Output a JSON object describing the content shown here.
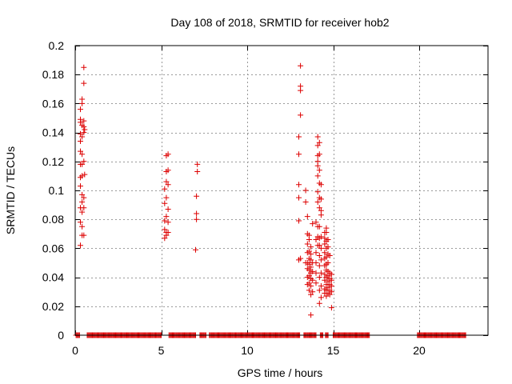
{
  "chart_data": {
    "type": "scatter",
    "title": "Day 108 of 2018, SRMTID for receiver hob2",
    "xlabel": "GPS time / hours",
    "ylabel": "SRMTID / TECUs",
    "xlim": [
      0,
      24
    ],
    "ylim": [
      0,
      0.2
    ],
    "x_ticks": [
      0,
      5,
      10,
      15,
      20
    ],
    "x_tick_labels": [
      "0",
      "5",
      "10",
      "15",
      "20"
    ],
    "y_ticks": [
      0,
      0.02,
      0.04,
      0.06,
      0.08,
      0.1,
      0.12,
      0.14,
      0.16,
      0.18,
      0.2
    ],
    "y_tick_labels": [
      "0",
      "0.02",
      "0.04",
      "0.06",
      "0.08",
      "0.1",
      "0.12",
      "0.14",
      "0.16",
      "0.18",
      "0.2"
    ],
    "grid": true,
    "marker": "+",
    "color": "#dd0000",
    "zero_value_runs": [
      {
        "start": 0.05,
        "end": 0.25
      },
      {
        "start": 0.7,
        "end": 5.0
      },
      {
        "start": 5.45,
        "end": 7.0
      },
      {
        "start": 7.25,
        "end": 7.6
      },
      {
        "start": 7.8,
        "end": 13.05
      },
      {
        "start": 13.3,
        "end": 14.0
      },
      {
        "start": 14.25,
        "end": 14.4
      },
      {
        "start": 14.55,
        "end": 14.7
      },
      {
        "start": 15.0,
        "end": 17.1
      },
      {
        "start": 19.9,
        "end": 22.7
      }
    ],
    "points": [
      [
        0.3,
        0.062
      ],
      [
        0.3,
        0.078
      ],
      [
        0.3,
        0.088
      ],
      [
        0.3,
        0.103
      ],
      [
        0.3,
        0.109
      ],
      [
        0.3,
        0.118
      ],
      [
        0.3,
        0.127
      ],
      [
        0.3,
        0.134
      ],
      [
        0.3,
        0.139
      ],
      [
        0.3,
        0.147
      ],
      [
        0.3,
        0.149
      ],
      [
        0.3,
        0.156
      ],
      [
        0.4,
        0.069
      ],
      [
        0.4,
        0.075
      ],
      [
        0.4,
        0.085
      ],
      [
        0.4,
        0.092
      ],
      [
        0.4,
        0.097
      ],
      [
        0.4,
        0.11
      ],
      [
        0.4,
        0.118
      ],
      [
        0.4,
        0.125
      ],
      [
        0.4,
        0.137
      ],
      [
        0.4,
        0.145
      ],
      [
        0.4,
        0.16
      ],
      [
        0.4,
        0.163
      ],
      [
        0.5,
        0.069
      ],
      [
        0.5,
        0.088
      ],
      [
        0.5,
        0.095
      ],
      [
        0.5,
        0.12
      ],
      [
        0.5,
        0.14
      ],
      [
        0.5,
        0.144
      ],
      [
        0.5,
        0.148
      ],
      [
        0.5,
        0.174
      ],
      [
        0.5,
        0.185
      ],
      [
        0.55,
        0.142
      ],
      [
        0.55,
        0.111
      ],
      [
        5.2,
        0.067
      ],
      [
        5.2,
        0.073
      ],
      [
        5.2,
        0.079
      ],
      [
        5.2,
        0.091
      ],
      [
        5.2,
        0.101
      ],
      [
        5.3,
        0.069
      ],
      [
        5.3,
        0.071
      ],
      [
        5.3,
        0.082
      ],
      [
        5.3,
        0.095
      ],
      [
        5.3,
        0.106
      ],
      [
        5.3,
        0.113
      ],
      [
        5.3,
        0.124
      ],
      [
        5.4,
        0.071
      ],
      [
        5.4,
        0.078
      ],
      [
        5.4,
        0.087
      ],
      [
        5.4,
        0.104
      ],
      [
        5.4,
        0.114
      ],
      [
        5.4,
        0.125
      ],
      [
        7.0,
        0.059
      ],
      [
        7.05,
        0.08
      ],
      [
        7.05,
        0.084
      ],
      [
        7.05,
        0.096
      ],
      [
        7.1,
        0.113
      ],
      [
        7.1,
        0.118
      ],
      [
        13.0,
        0.052
      ],
      [
        13.0,
        0.079
      ],
      [
        13.0,
        0.095
      ],
      [
        13.0,
        0.104
      ],
      [
        13.0,
        0.125
      ],
      [
        13.0,
        0.137
      ],
      [
        13.1,
        0.053
      ],
      [
        13.1,
        0.152
      ],
      [
        13.1,
        0.169
      ],
      [
        13.1,
        0.172
      ],
      [
        13.1,
        0.186
      ],
      [
        13.4,
        0.05
      ],
      [
        13.4,
        0.092
      ],
      [
        13.4,
        0.1
      ],
      [
        13.5,
        0.035
      ],
      [
        13.5,
        0.04
      ],
      [
        13.5,
        0.046
      ],
      [
        13.5,
        0.05
      ],
      [
        13.5,
        0.057
      ],
      [
        13.5,
        0.063
      ],
      [
        13.5,
        0.07
      ],
      [
        13.5,
        0.082
      ],
      [
        13.6,
        0.031
      ],
      [
        13.6,
        0.036
      ],
      [
        13.6,
        0.041
      ],
      [
        13.6,
        0.045
      ],
      [
        13.6,
        0.049
      ],
      [
        13.6,
        0.053
      ],
      [
        13.6,
        0.058
      ],
      [
        13.6,
        0.066
      ],
      [
        13.6,
        0.069
      ],
      [
        13.7,
        0.014
      ],
      [
        13.7,
        0.028
      ],
      [
        13.7,
        0.034
      ],
      [
        13.7,
        0.039
      ],
      [
        13.7,
        0.043
      ],
      [
        13.7,
        0.047
      ],
      [
        13.7,
        0.052
      ],
      [
        13.7,
        0.056
      ],
      [
        13.7,
        0.061
      ],
      [
        13.8,
        0.03
      ],
      [
        13.8,
        0.038
      ],
      [
        13.8,
        0.044
      ],
      [
        13.8,
        0.05
      ],
      [
        13.8,
        0.077
      ],
      [
        14.0,
        0.036
      ],
      [
        14.0,
        0.043
      ],
      [
        14.0,
        0.05
      ],
      [
        14.0,
        0.057
      ],
      [
        14.0,
        0.066
      ],
      [
        14.0,
        0.078
      ],
      [
        14.1,
        0.062
      ],
      [
        14.1,
        0.068
      ],
      [
        14.1,
        0.075
      ],
      [
        14.1,
        0.092
      ],
      [
        14.1,
        0.099
      ],
      [
        14.1,
        0.11
      ],
      [
        14.1,
        0.117
      ],
      [
        14.1,
        0.12
      ],
      [
        14.1,
        0.124
      ],
      [
        14.1,
        0.131
      ],
      [
        14.1,
        0.137
      ],
      [
        14.2,
        0.022
      ],
      [
        14.2,
        0.031
      ],
      [
        14.2,
        0.04
      ],
      [
        14.2,
        0.048
      ],
      [
        14.2,
        0.055
      ],
      [
        14.2,
        0.062
      ],
      [
        14.2,
        0.067
      ],
      [
        14.2,
        0.075
      ],
      [
        14.2,
        0.088
      ],
      [
        14.2,
        0.095
      ],
      [
        14.2,
        0.105
      ],
      [
        14.2,
        0.114
      ],
      [
        14.2,
        0.125
      ],
      [
        14.2,
        0.133
      ],
      [
        14.3,
        0.026
      ],
      [
        14.3,
        0.034
      ],
      [
        14.3,
        0.043
      ],
      [
        14.3,
        0.052
      ],
      [
        14.3,
        0.06
      ],
      [
        14.3,
        0.068
      ],
      [
        14.3,
        0.083
      ],
      [
        14.3,
        0.086
      ],
      [
        14.3,
        0.094
      ],
      [
        14.3,
        0.104
      ],
      [
        14.5,
        0.029
      ],
      [
        14.5,
        0.032
      ],
      [
        14.5,
        0.038
      ],
      [
        14.5,
        0.042
      ],
      [
        14.5,
        0.048
      ],
      [
        14.5,
        0.053
      ],
      [
        14.5,
        0.057
      ],
      [
        14.5,
        0.063
      ],
      [
        14.5,
        0.067
      ],
      [
        14.5,
        0.071
      ],
      [
        14.6,
        0.027
      ],
      [
        14.6,
        0.031
      ],
      [
        14.6,
        0.035
      ],
      [
        14.6,
        0.04
      ],
      [
        14.6,
        0.045
      ],
      [
        14.6,
        0.049
      ],
      [
        14.6,
        0.054
      ],
      [
        14.6,
        0.06
      ],
      [
        14.6,
        0.065
      ],
      [
        14.6,
        0.071
      ],
      [
        14.6,
        0.074
      ],
      [
        14.7,
        0.029
      ],
      [
        14.7,
        0.033
      ],
      [
        14.7,
        0.037
      ],
      [
        14.7,
        0.041
      ],
      [
        14.7,
        0.044
      ],
      [
        14.7,
        0.05
      ],
      [
        14.7,
        0.056
      ],
      [
        14.7,
        0.061
      ],
      [
        14.7,
        0.066
      ],
      [
        14.8,
        0.028
      ],
      [
        14.8,
        0.031
      ],
      [
        14.8,
        0.035
      ],
      [
        14.8,
        0.039
      ],
      [
        14.8,
        0.043
      ],
      [
        14.8,
        0.055
      ],
      [
        14.9,
        0.019
      ],
      [
        14.9,
        0.03
      ],
      [
        14.9,
        0.034
      ],
      [
        14.9,
        0.038
      ],
      [
        14.9,
        0.042
      ]
    ]
  }
}
